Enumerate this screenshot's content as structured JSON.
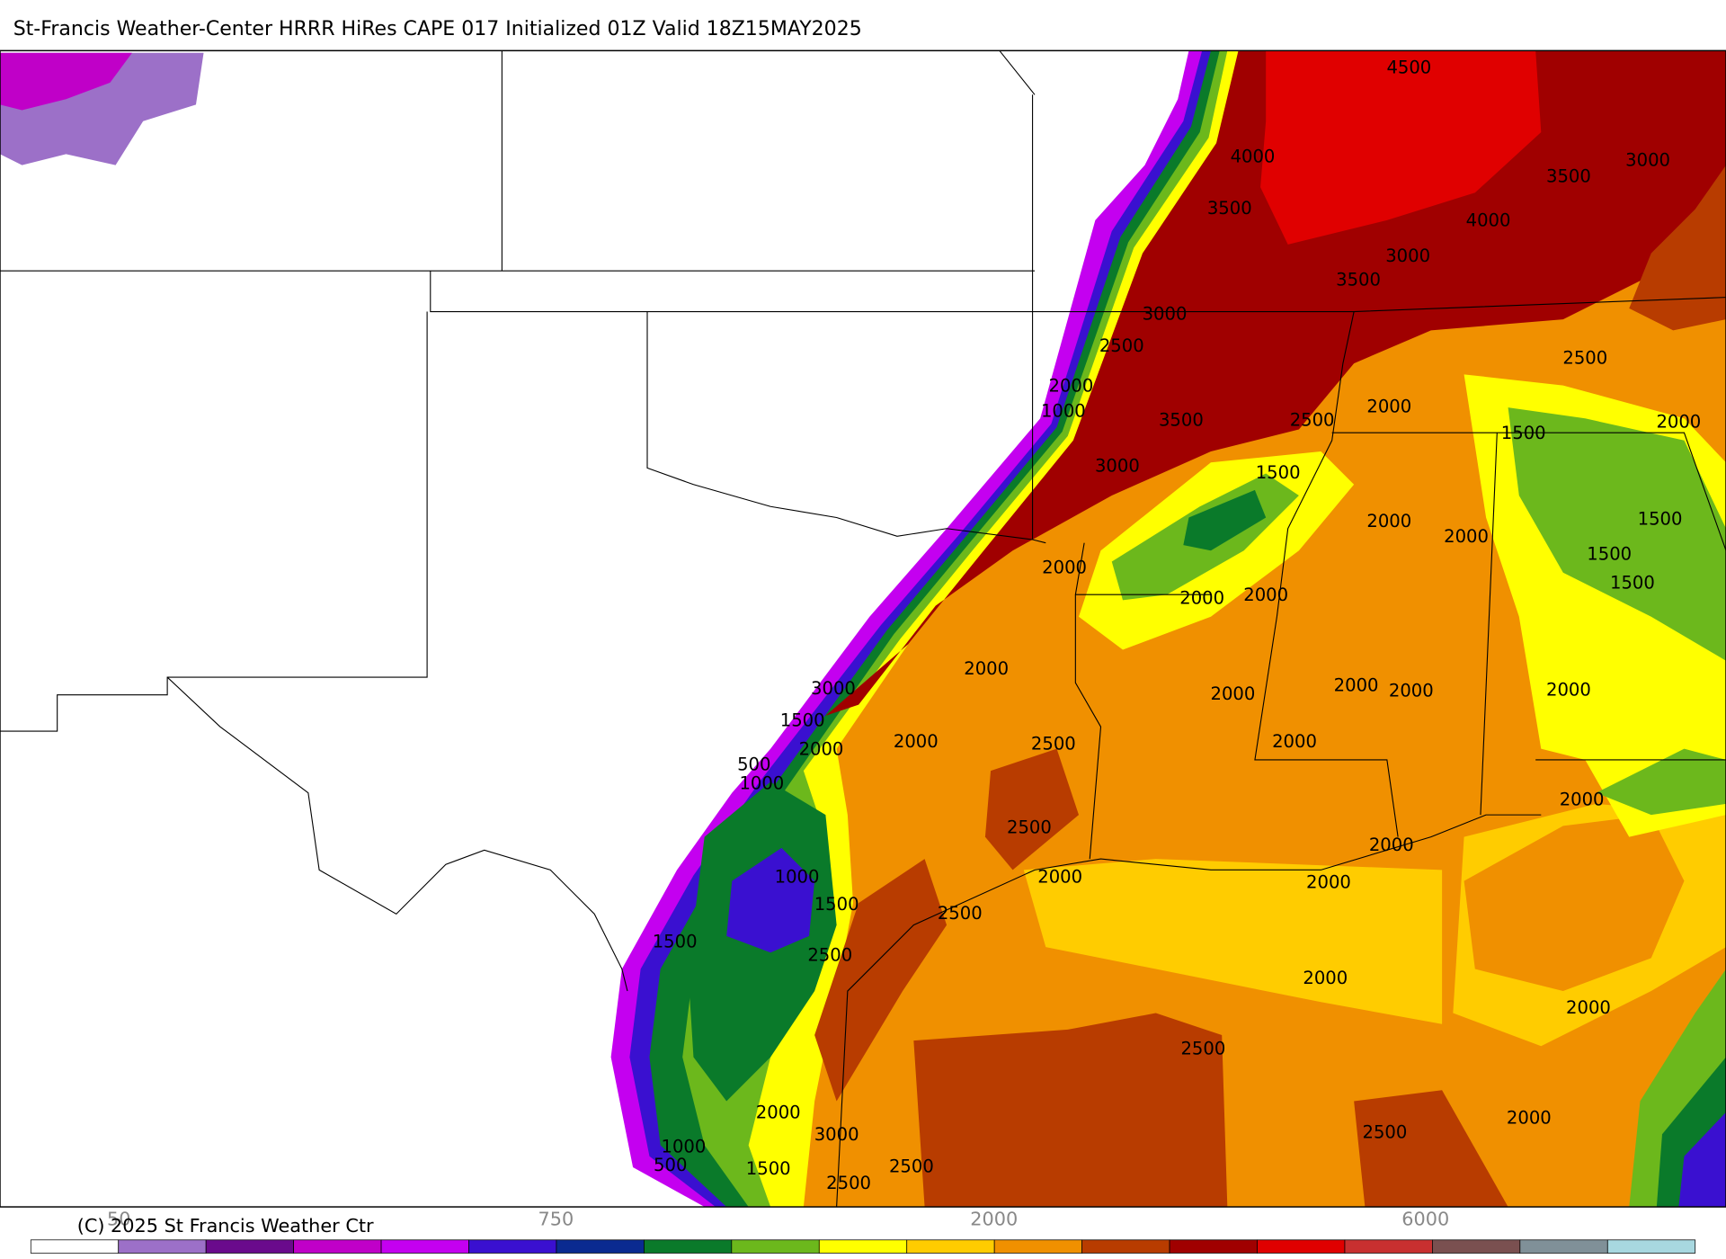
{
  "header": {
    "title": "St-Francis Weather-Center HRRR HiRes CAPE  017 Initialized  01Z Valid 18Z15MAY2025"
  },
  "contour_labels": [
    "4500",
    "4000",
    "3500",
    "3000",
    "3500",
    "4000",
    "3000",
    "3500",
    "3000",
    "2500",
    "2500",
    "2000",
    "1000",
    "3500",
    "2500",
    "2000",
    "1500",
    "2000",
    "3000",
    "1500",
    "2000",
    "2000",
    "1500",
    "1500",
    "1500",
    "2000",
    "2000",
    "2000",
    "2000",
    "3000",
    "1500",
    "2000",
    "2000",
    "2500",
    "2000",
    "2000",
    "2000",
    "2000",
    "2000",
    "500",
    "1000",
    "2500",
    "2000",
    "2000",
    "1000",
    "2000",
    "2000",
    "1500",
    "2500",
    "1500",
    "2500",
    "2000",
    "2000",
    "2500",
    "2000",
    "2000",
    "2500",
    "3000",
    "1000",
    "500",
    "1500",
    "2500",
    "2500"
  ],
  "legend": {
    "colors": [
      "#ffffff",
      "#9c70c8",
      "#6a0a8c",
      "#c000c8",
      "#c400f0",
      "#3a10d0",
      "#0a2a90",
      "#0a7a2a",
      "#6cb81c",
      "#ffff00",
      "#ffcc00",
      "#f09000",
      "#b83c00",
      "#a00000",
      "#e00000",
      "#c83030",
      "#7a5050",
      "#809098",
      "#a8d8e0"
    ],
    "labels": [
      "50",
      "750",
      "2000",
      "6000"
    ]
  },
  "footer": {
    "copyright": "(C) 2025 St Francis Weather Ctr"
  }
}
